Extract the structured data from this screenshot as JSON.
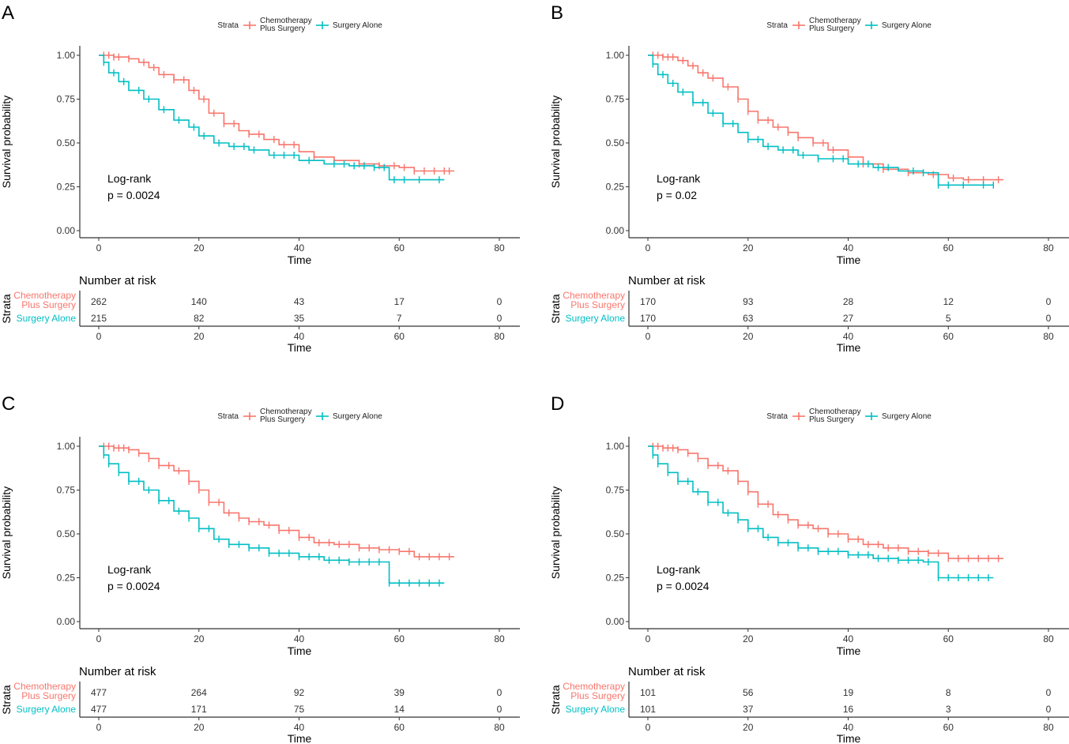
{
  "colors": {
    "chemo": "#F8766D",
    "surgery": "#00BFC4",
    "axis": "#333333"
  },
  "chart_data": [
    {
      "panel": "A",
      "type": "line",
      "subtype": "kaplan-meier",
      "legend_title": "Strata",
      "xlabel": "Time",
      "ylabel": "Survival probability",
      "xlim": [
        0,
        80
      ],
      "ylim": [
        0,
        1
      ],
      "xticks": [
        "0",
        "20",
        "40",
        "60",
        "80"
      ],
      "yticks": [
        "0.00",
        "0.25",
        "0.50",
        "0.75",
        "1.00"
      ],
      "annotation": [
        "Log-rank",
        "p = 0.0024"
      ],
      "risk_title": "Number at risk",
      "risk_axis_label": "Strata",
      "series": [
        {
          "name_lines": [
            "Chemotherapy",
            "Plus Surgery"
          ],
          "color": "#F8766D",
          "x": [
            0,
            3,
            6,
            8,
            10,
            12,
            15,
            18,
            20,
            22,
            25,
            28,
            30,
            33,
            36,
            40,
            43,
            47,
            52,
            56,
            60,
            63,
            67,
            71
          ],
          "y": [
            1.0,
            0.99,
            0.98,
            0.96,
            0.93,
            0.89,
            0.86,
            0.8,
            0.75,
            0.67,
            0.61,
            0.57,
            0.55,
            0.52,
            0.49,
            0.45,
            0.42,
            0.4,
            0.38,
            0.37,
            0.36,
            0.34,
            0.34,
            0.34
          ],
          "censor": [
            1,
            2,
            3,
            4,
            6,
            9,
            11,
            13,
            15,
            17,
            19,
            21,
            23,
            25,
            27,
            30,
            32,
            35,
            37,
            39,
            43,
            47,
            52,
            56,
            59,
            61,
            63,
            65,
            67,
            69,
            70
          ],
          "risk": [
            "262",
            "140",
            "43",
            "17",
            "0"
          ]
        },
        {
          "name_lines": [
            "Surgery Alone"
          ],
          "color": "#00BFC4",
          "x": [
            0,
            1,
            2,
            4,
            6,
            9,
            12,
            15,
            18,
            20,
            23,
            26,
            30,
            34,
            40,
            45,
            50,
            55,
            58,
            62,
            66,
            69
          ],
          "y": [
            1.0,
            0.96,
            0.9,
            0.85,
            0.8,
            0.75,
            0.69,
            0.63,
            0.59,
            0.54,
            0.5,
            0.48,
            0.46,
            0.43,
            0.4,
            0.38,
            0.37,
            0.36,
            0.29,
            0.29,
            0.29,
            0.29
          ],
          "censor": [
            1,
            3,
            5,
            8,
            10,
            13,
            16,
            19,
            21,
            24,
            27,
            29,
            31,
            35,
            37,
            39,
            42,
            47,
            49,
            51,
            53,
            55,
            57,
            59,
            61,
            64,
            68
          ],
          "risk": [
            "215",
            "82",
            "35",
            "7",
            "0"
          ]
        }
      ]
    },
    {
      "panel": "B",
      "type": "line",
      "subtype": "kaplan-meier",
      "legend_title": "Strata",
      "xlabel": "Time",
      "ylabel": "Survival probability",
      "xlim": [
        0,
        80
      ],
      "ylim": [
        0,
        1
      ],
      "xticks": [
        "0",
        "20",
        "40",
        "60",
        "80"
      ],
      "yticks": [
        "0.00",
        "0.25",
        "0.50",
        "0.75",
        "1.00"
      ],
      "annotation": [
        "Log-rank",
        "p = 0.02"
      ],
      "risk_title": "Number at risk",
      "risk_axis_label": "Strata",
      "series": [
        {
          "name_lines": [
            "Chemotherapy",
            "Plus Surgery"
          ],
          "color": "#F8766D",
          "x": [
            0,
            3,
            6,
            8,
            10,
            12,
            15,
            18,
            20,
            22,
            25,
            28,
            30,
            33,
            36,
            40,
            43,
            47,
            52,
            56,
            60,
            63,
            67,
            71
          ],
          "y": [
            1.0,
            0.99,
            0.97,
            0.94,
            0.9,
            0.87,
            0.82,
            0.75,
            0.68,
            0.63,
            0.59,
            0.56,
            0.53,
            0.5,
            0.46,
            0.42,
            0.38,
            0.35,
            0.33,
            0.32,
            0.3,
            0.29,
            0.29,
            0.29
          ],
          "censor": [
            1,
            2,
            3,
            4,
            5,
            7,
            9,
            11,
            13,
            16,
            18,
            20,
            22,
            24,
            26,
            28,
            30,
            33,
            35,
            37,
            40,
            43,
            47,
            52,
            57,
            61,
            64,
            67,
            70
          ],
          "risk": [
            "170",
            "93",
            "28",
            "12",
            "0"
          ]
        },
        {
          "name_lines": [
            "Surgery Alone"
          ],
          "color": "#00BFC4",
          "x": [
            0,
            1,
            2,
            4,
            6,
            9,
            12,
            15,
            18,
            20,
            23,
            26,
            30,
            34,
            40,
            45,
            50,
            55,
            58,
            62,
            66,
            69
          ],
          "y": [
            1.0,
            0.95,
            0.89,
            0.84,
            0.79,
            0.73,
            0.67,
            0.61,
            0.56,
            0.52,
            0.48,
            0.46,
            0.43,
            0.41,
            0.38,
            0.36,
            0.34,
            0.33,
            0.26,
            0.26,
            0.26,
            0.26
          ],
          "censor": [
            1,
            3,
            5,
            7,
            9,
            11,
            13,
            15,
            17,
            20,
            22,
            24,
            27,
            29,
            31,
            34,
            37,
            39,
            42,
            44,
            46,
            48,
            53,
            55,
            58,
            60,
            63,
            67,
            69
          ],
          "risk": [
            "170",
            "63",
            "27",
            "5",
            "0"
          ]
        }
      ]
    },
    {
      "panel": "C",
      "type": "line",
      "subtype": "kaplan-meier",
      "legend_title": "Strata",
      "xlabel": "Time",
      "ylabel": "Survival probability",
      "xlim": [
        0,
        80
      ],
      "ylim": [
        0,
        1
      ],
      "xticks": [
        "0",
        "20",
        "40",
        "60",
        "80"
      ],
      "yticks": [
        "0.00",
        "0.25",
        "0.50",
        "0.75",
        "1.00"
      ],
      "annotation": [
        "Log-rank",
        "p = 0.0024"
      ],
      "risk_title": "Number at risk",
      "risk_axis_label": "Strata",
      "series": [
        {
          "name_lines": [
            "Chemotherapy",
            "Plus Surgery"
          ],
          "color": "#F8766D",
          "x": [
            0,
            3,
            6,
            8,
            10,
            12,
            15,
            18,
            20,
            22,
            25,
            28,
            30,
            33,
            36,
            40,
            43,
            47,
            52,
            56,
            60,
            63,
            67,
            71
          ],
          "y": [
            1.0,
            0.99,
            0.98,
            0.96,
            0.93,
            0.89,
            0.86,
            0.8,
            0.75,
            0.68,
            0.62,
            0.59,
            0.57,
            0.55,
            0.52,
            0.48,
            0.45,
            0.44,
            0.42,
            0.41,
            0.4,
            0.37,
            0.37,
            0.37
          ],
          "censor": [
            1,
            2,
            3,
            4,
            5,
            6,
            8,
            10,
            12,
            14,
            16,
            18,
            20,
            22,
            24,
            26,
            28,
            30,
            32,
            34,
            36,
            38,
            40,
            42,
            44,
            46,
            48,
            50,
            52,
            54,
            56,
            58,
            60,
            62,
            64,
            66,
            68,
            70
          ],
          "risk": [
            "477",
            "264",
            "92",
            "39",
            "0"
          ]
        },
        {
          "name_lines": [
            "Surgery Alone"
          ],
          "color": "#00BFC4",
          "x": [
            0,
            1,
            2,
            4,
            6,
            9,
            12,
            15,
            18,
            20,
            23,
            26,
            30,
            34,
            40,
            45,
            50,
            55,
            58,
            62,
            66,
            69
          ],
          "y": [
            1.0,
            0.95,
            0.9,
            0.85,
            0.8,
            0.75,
            0.69,
            0.63,
            0.59,
            0.53,
            0.47,
            0.44,
            0.42,
            0.39,
            0.37,
            0.35,
            0.34,
            0.34,
            0.22,
            0.22,
            0.22,
            0.22
          ],
          "censor": [
            1,
            2,
            4,
            6,
            8,
            10,
            12,
            14,
            16,
            18,
            20,
            22,
            24,
            26,
            28,
            30,
            32,
            34,
            36,
            38,
            40,
            42,
            44,
            46,
            48,
            50,
            52,
            54,
            56,
            58,
            60,
            62,
            64,
            66,
            68
          ],
          "risk": [
            "477",
            "171",
            "75",
            "14",
            "0"
          ]
        }
      ]
    },
    {
      "panel": "D",
      "type": "line",
      "subtype": "kaplan-meier",
      "legend_title": "Strata",
      "xlabel": "Time",
      "ylabel": "Survival probability",
      "xlim": [
        0,
        80
      ],
      "ylim": [
        0,
        1
      ],
      "xticks": [
        "0",
        "20",
        "40",
        "60",
        "80"
      ],
      "yticks": [
        "0.00",
        "0.25",
        "0.50",
        "0.75",
        "1.00"
      ],
      "annotation": [
        "Log-rank",
        "p = 0.0024"
      ],
      "risk_title": "Number at risk",
      "risk_axis_label": "Strata",
      "series": [
        {
          "name_lines": [
            "Chemotherapy",
            "Plus Surgery"
          ],
          "color": "#F8766D",
          "x": [
            0,
            3,
            6,
            8,
            10,
            12,
            15,
            18,
            20,
            22,
            25,
            28,
            30,
            33,
            36,
            40,
            43,
            47,
            52,
            56,
            60,
            63,
            67,
            71
          ],
          "y": [
            1.0,
            0.99,
            0.98,
            0.96,
            0.93,
            0.89,
            0.86,
            0.8,
            0.74,
            0.67,
            0.61,
            0.58,
            0.55,
            0.53,
            0.5,
            0.47,
            0.44,
            0.42,
            0.4,
            0.39,
            0.36,
            0.36,
            0.36,
            0.36
          ],
          "censor": [
            1,
            2,
            3,
            4,
            5,
            6,
            8,
            10,
            12,
            14,
            16,
            18,
            20,
            22,
            24,
            26,
            28,
            30,
            32,
            34,
            36,
            38,
            40,
            42,
            44,
            46,
            48,
            50,
            52,
            54,
            56,
            58,
            60,
            62,
            64,
            66,
            68,
            70
          ],
          "risk": [
            "101",
            "56",
            "19",
            "8",
            "0"
          ]
        },
        {
          "name_lines": [
            "Surgery Alone"
          ],
          "color": "#00BFC4",
          "x": [
            0,
            1,
            2,
            4,
            6,
            9,
            12,
            15,
            18,
            20,
            23,
            26,
            30,
            34,
            40,
            45,
            50,
            55,
            58,
            62,
            66,
            69
          ],
          "y": [
            1.0,
            0.95,
            0.9,
            0.85,
            0.8,
            0.74,
            0.68,
            0.62,
            0.58,
            0.53,
            0.48,
            0.45,
            0.42,
            0.4,
            0.38,
            0.36,
            0.35,
            0.34,
            0.25,
            0.25,
            0.25,
            0.25
          ],
          "censor": [
            1,
            2,
            4,
            6,
            8,
            10,
            12,
            14,
            16,
            18,
            20,
            22,
            24,
            26,
            28,
            30,
            32,
            34,
            36,
            38,
            40,
            42,
            44,
            46,
            48,
            50,
            52,
            54,
            56,
            58,
            60,
            62,
            64,
            66,
            68
          ],
          "risk": [
            "101",
            "37",
            "16",
            "3",
            "0"
          ]
        }
      ]
    }
  ]
}
